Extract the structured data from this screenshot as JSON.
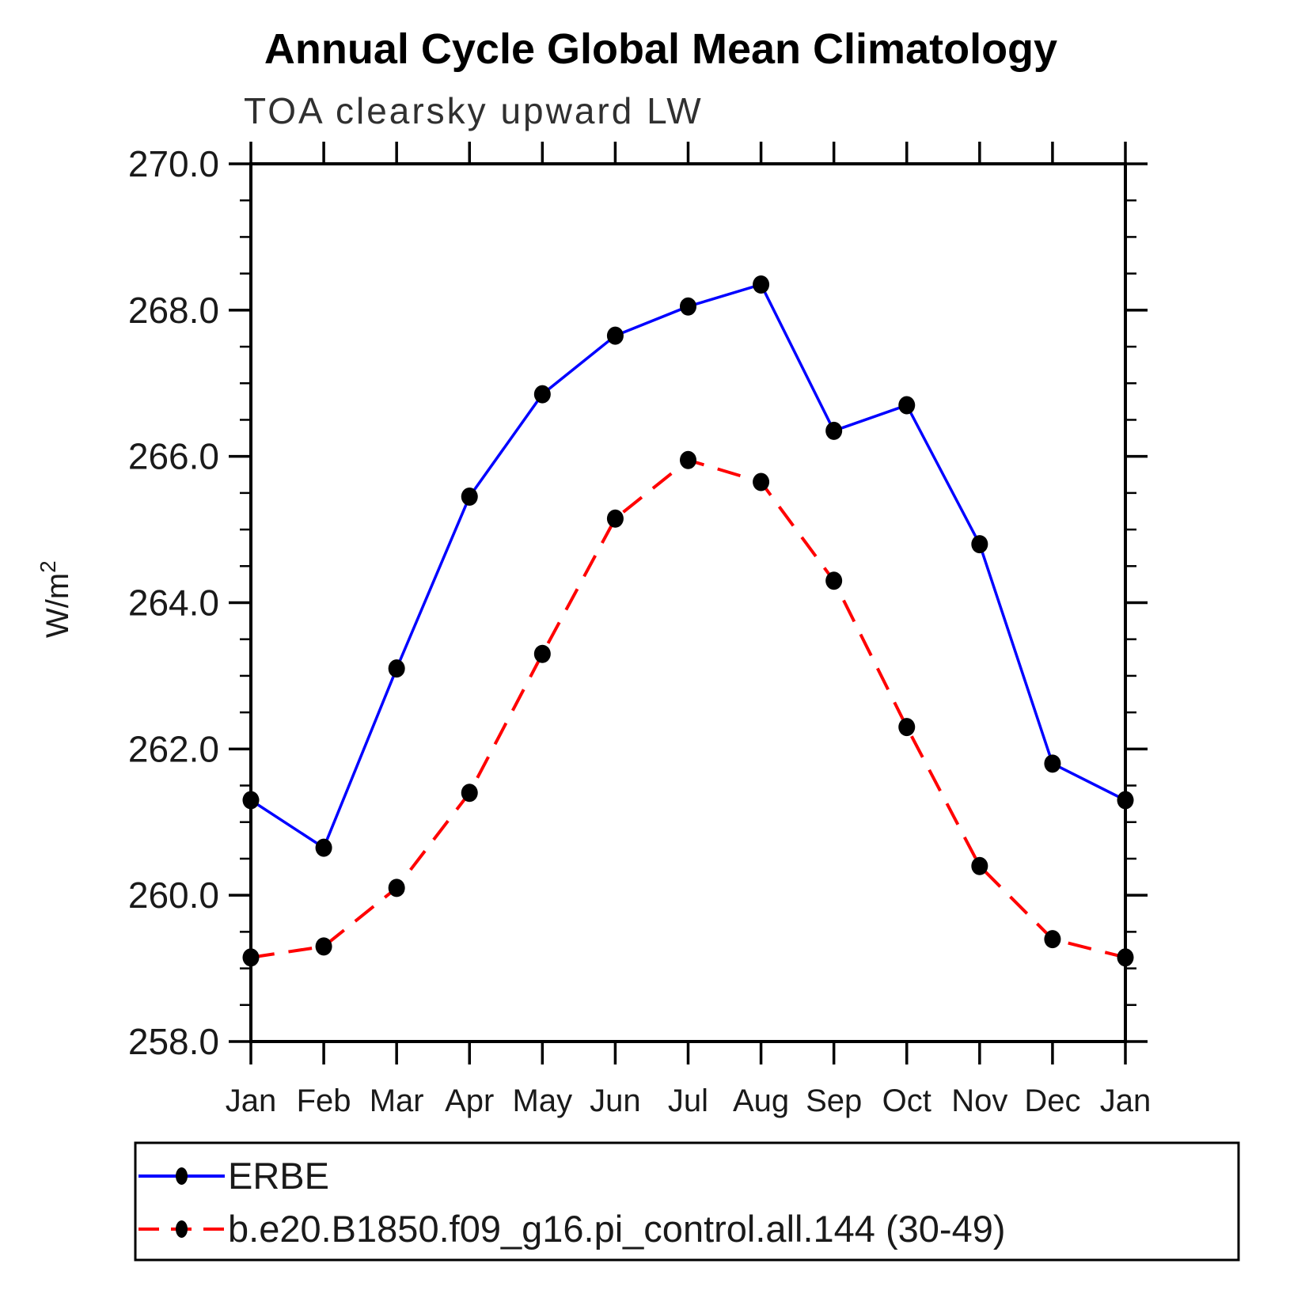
{
  "page": {
    "title": "Annual Cycle Global Mean Climatology",
    "subtitle": "TOA clearsky upward LW"
  },
  "y_axis": {
    "label": "W/m²",
    "label_base": "W/m",
    "label_sup": "2",
    "tick_labels": [
      "258.0",
      "260.0",
      "262.0",
      "264.0",
      "266.0",
      "268.0",
      "270.0"
    ],
    "tick_values": [
      258.0,
      260.0,
      262.0,
      264.0,
      266.0,
      268.0,
      270.0
    ],
    "minor_step": 0.5
  },
  "x_axis": {
    "tick_labels": [
      "Jan",
      "Feb",
      "Mar",
      "Apr",
      "May",
      "Jun",
      "Jul",
      "Aug",
      "Sep",
      "Oct",
      "Nov",
      "Dec",
      "Jan"
    ]
  },
  "chart_data": {
    "type": "line",
    "title": "Annual Cycle Global Mean Climatology",
    "subtitle": "TOA clearsky upward LW",
    "ylabel": "W/m²",
    "xlabel": "",
    "categories": [
      "Jan",
      "Feb",
      "Mar",
      "Apr",
      "May",
      "Jun",
      "Jul",
      "Aug",
      "Sep",
      "Oct",
      "Nov",
      "Dec",
      "Jan"
    ],
    "ylim": [
      258.0,
      270.0
    ],
    "ytick_interval": 2.0,
    "yminor_interval": 0.5,
    "grid": false,
    "legend_position": "bottom-left-box",
    "marker": "filled-circle",
    "marker_color": "#000000",
    "series": [
      {
        "name": "ERBE",
        "color": "#0000ff",
        "line_style": "solid",
        "values": [
          261.3,
          260.65,
          263.1,
          265.45,
          266.85,
          267.65,
          268.05,
          268.35,
          266.35,
          266.7,
          264.8,
          261.8,
          261.3
        ]
      },
      {
        "name": "b.e20.B1850.f09_g16.pi_control.all.144 (30-49)",
        "color": "#ff0000",
        "line_style": "dashed",
        "values": [
          259.15,
          259.3,
          260.1,
          261.4,
          263.3,
          265.15,
          265.95,
          265.65,
          264.3,
          262.3,
          260.4,
          259.4,
          259.15
        ]
      }
    ]
  }
}
